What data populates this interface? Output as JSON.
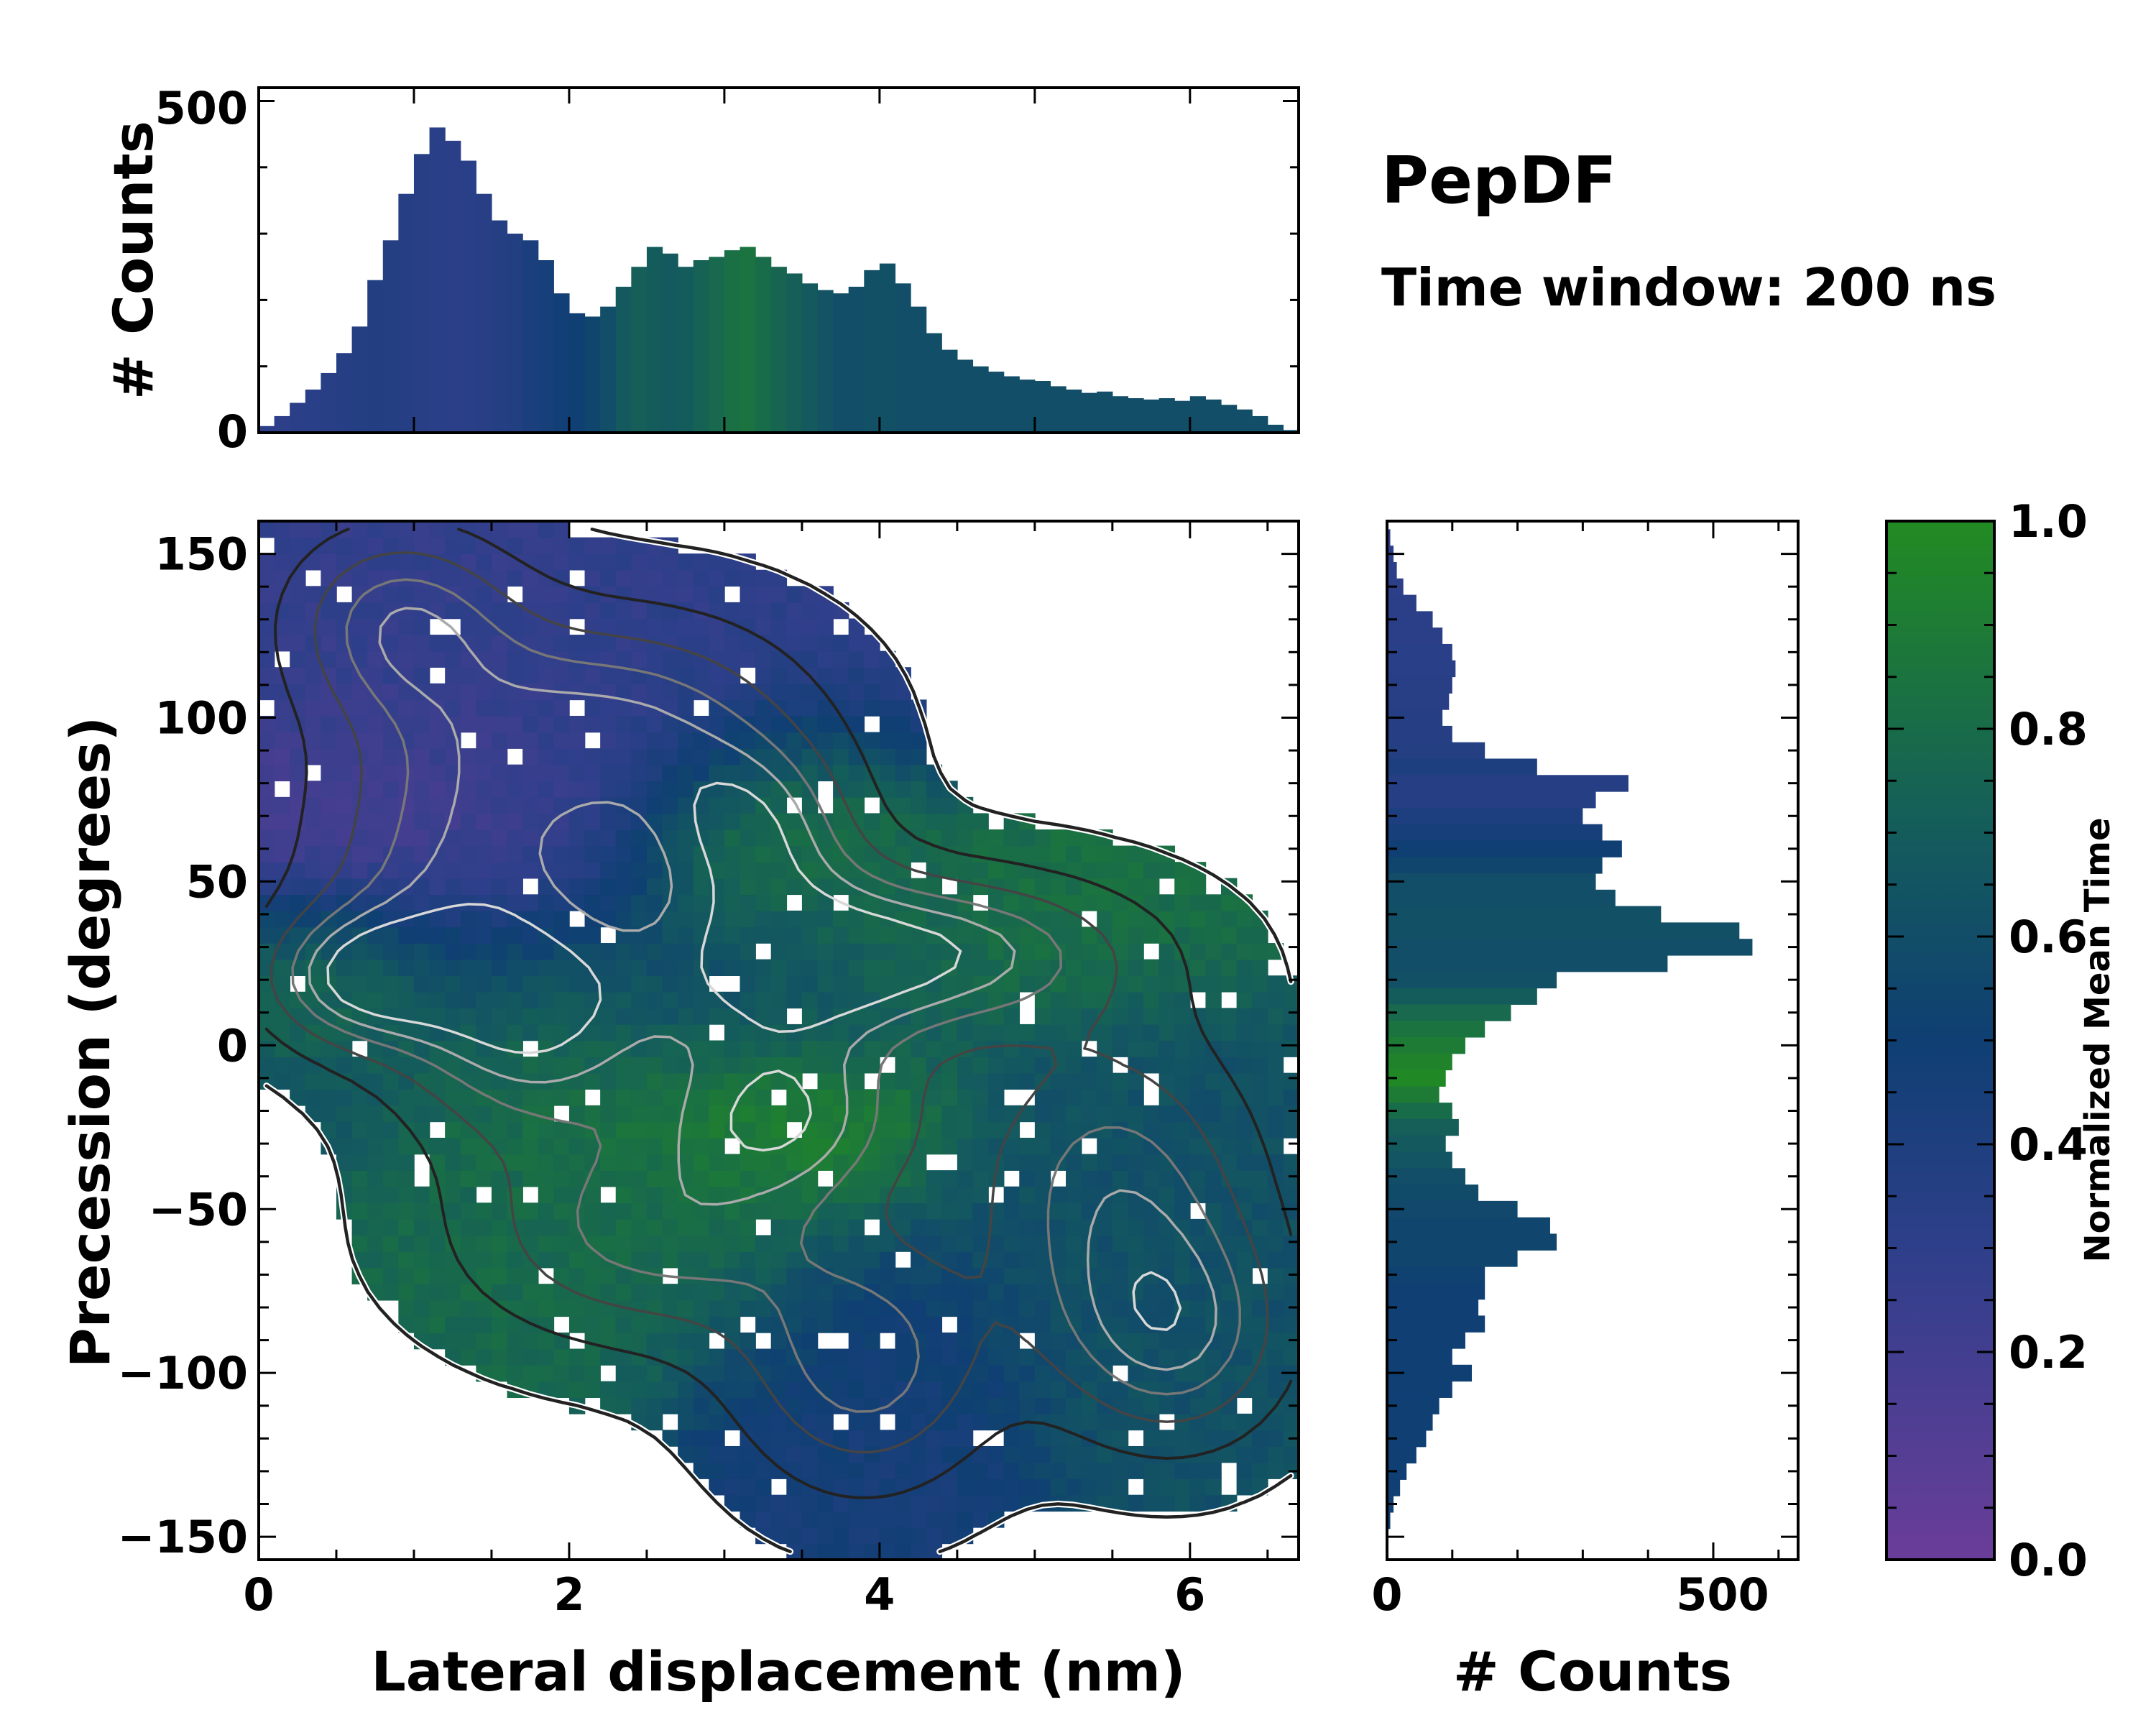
{
  "annotation": {
    "title": "PepDF",
    "subtitle": "Time window: 200 ns"
  },
  "colors": {
    "low": "#6a3d9a",
    "mid_low": "#2e3f8a",
    "mid": "#0f3f73",
    "mid_high": "#145c5c",
    "high": "#228b22",
    "contour_dark": "#222222",
    "contour_light": "#d8d8d8",
    "frame": "#000000"
  },
  "chart_data": [
    {
      "id": "top-histogram",
      "type": "bar",
      "ylabel": "# Counts",
      "xlim": [
        0,
        6.7
      ],
      "ylim": [
        0,
        520
      ],
      "yticks": [
        0,
        500
      ],
      "ytick_labels": [
        "0",
        "500"
      ],
      "bin_centers": [
        0.05,
        0.15,
        0.25,
        0.35,
        0.45,
        0.55,
        0.65,
        0.75,
        0.85,
        0.95,
        1.05,
        1.15,
        1.25,
        1.35,
        1.45,
        1.55,
        1.65,
        1.75,
        1.85,
        1.95,
        2.05,
        2.15,
        2.25,
        2.35,
        2.45,
        2.55,
        2.65,
        2.75,
        2.85,
        2.95,
        3.05,
        3.15,
        3.25,
        3.35,
        3.45,
        3.55,
        3.65,
        3.75,
        3.85,
        3.95,
        4.05,
        4.15,
        4.25,
        4.35,
        4.45,
        4.55,
        4.65,
        4.75,
        4.85,
        4.95,
        5.05,
        5.15,
        5.25,
        5.35,
        5.45,
        5.55,
        5.65,
        5.75,
        5.85,
        5.95,
        6.05,
        6.15,
        6.25,
        6.35,
        6.45,
        6.55,
        6.65
      ],
      "values": [
        10,
        25,
        45,
        65,
        90,
        120,
        160,
        230,
        290,
        360,
        420,
        460,
        440,
        410,
        360,
        320,
        300,
        290,
        260,
        210,
        180,
        175,
        190,
        220,
        250,
        280,
        270,
        250,
        260,
        265,
        275,
        280,
        265,
        250,
        240,
        225,
        215,
        210,
        220,
        245,
        255,
        225,
        190,
        150,
        125,
        110,
        100,
        92,
        85,
        80,
        78,
        70,
        65,
        60,
        62,
        55,
        52,
        50,
        52,
        48,
        55,
        50,
        42,
        35,
        25,
        12,
        4
      ],
      "mean_time": [
        0.3,
        0.3,
        0.32,
        0.33,
        0.34,
        0.35,
        0.36,
        0.37,
        0.36,
        0.35,
        0.34,
        0.33,
        0.32,
        0.33,
        0.34,
        0.36,
        0.38,
        0.42,
        0.45,
        0.48,
        0.5,
        0.55,
        0.6,
        0.68,
        0.72,
        0.7,
        0.68,
        0.7,
        0.74,
        0.78,
        0.82,
        0.85,
        0.8,
        0.76,
        0.72,
        0.68,
        0.64,
        0.6,
        0.6,
        0.62,
        0.62,
        0.6,
        0.6,
        0.6,
        0.6,
        0.6,
        0.6,
        0.6,
        0.6,
        0.6,
        0.6,
        0.6,
        0.6,
        0.6,
        0.6,
        0.6,
        0.6,
        0.6,
        0.6,
        0.6,
        0.6,
        0.6,
        0.6,
        0.6,
        0.6,
        0.6,
        0.6
      ]
    },
    {
      "id": "main-heatmap",
      "type": "heatmap",
      "xlabel": "Lateral displacement (nm)",
      "ylabel": "Precession (degrees)",
      "xlim": [
        0,
        6.7
      ],
      "ylim": [
        -157,
        160
      ],
      "xticks": [
        0,
        2,
        4,
        6
      ],
      "xtick_labels": [
        "0",
        "2",
        "4",
        "6"
      ],
      "yticks": [
        150,
        100,
        50,
        0,
        -50,
        -100,
        -150
      ],
      "ytick_labels": [
        "150",
        "100",
        "50",
        "0",
        "−50",
        "−100",
        "−150"
      ],
      "grid": false,
      "lobes": [
        {
          "cx": 0.9,
          "cy": 130,
          "sx": 0.55,
          "sy": 22,
          "mean_time": 0.28
        },
        {
          "cx": 1.3,
          "cy": 55,
          "sx": 0.75,
          "sy": 35,
          "mean_time": 0.18
        },
        {
          "cx": 0.6,
          "cy": 20,
          "sx": 0.45,
          "sy": 15,
          "mean_time": 0.88
        },
        {
          "cx": 2.4,
          "cy": 100,
          "sx": 0.85,
          "sy": 25,
          "mean_time": 0.3
        },
        {
          "cx": 3.2,
          "cy": 65,
          "sx": 0.5,
          "sy": 20,
          "mean_time": 0.92
        },
        {
          "cx": 3.3,
          "cy": 20,
          "sx": 0.8,
          "sy": 22,
          "mean_time": 0.55
        },
        {
          "cx": 4.5,
          "cy": 30,
          "sx": 0.9,
          "sy": 18,
          "mean_time": 0.85
        },
        {
          "cx": 1.7,
          "cy": 5,
          "sx": 0.6,
          "sy": 25,
          "mean_time": 0.88
        },
        {
          "cx": 3.4,
          "cy": -22,
          "sx": 0.6,
          "sy": 18,
          "mean_time": 0.98
        },
        {
          "cx": 2.5,
          "cy": -58,
          "sx": 0.9,
          "sy": 25,
          "mean_time": 0.78
        },
        {
          "cx": 3.9,
          "cy": -100,
          "sx": 0.6,
          "sy": 28,
          "mean_time": 0.45
        },
        {
          "cx": 5.5,
          "cy": -40,
          "sx": 0.7,
          "sy": 35,
          "mean_time": 0.62
        },
        {
          "cx": 5.9,
          "cy": -90,
          "sx": 0.55,
          "sy": 25,
          "mean_time": 0.62
        }
      ]
    },
    {
      "id": "right-histogram",
      "type": "bar",
      "orientation": "horizontal",
      "xlabel": "# Counts",
      "xlim": [
        0,
        630
      ],
      "ylim": [
        -157,
        160
      ],
      "xticks": [
        0,
        500
      ],
      "xtick_labels": [
        "0",
        "500"
      ],
      "bin_centers": [
        155,
        150,
        145,
        140,
        135,
        130,
        125,
        120,
        115,
        110,
        105,
        100,
        95,
        90,
        85,
        80,
        75,
        70,
        65,
        60,
        55,
        50,
        45,
        40,
        35,
        30,
        25,
        20,
        15,
        10,
        5,
        0,
        -5,
        -10,
        -15,
        -20,
        -25,
        -30,
        -35,
        -40,
        -45,
        -50,
        -55,
        -60,
        -65,
        -70,
        -75,
        -80,
        -85,
        -90,
        -95,
        -100,
        -105,
        -110,
        -115,
        -120,
        -125,
        -130,
        -135,
        -140,
        -145
      ],
      "values": [
        5,
        10,
        15,
        25,
        45,
        70,
        85,
        100,
        105,
        100,
        95,
        85,
        100,
        150,
        230,
        370,
        320,
        300,
        330,
        360,
        330,
        320,
        350,
        420,
        540,
        560,
        430,
        260,
        230,
        190,
        150,
        120,
        100,
        90,
        80,
        100,
        110,
        90,
        100,
        120,
        140,
        200,
        250,
        260,
        200,
        150,
        150,
        140,
        150,
        120,
        100,
        130,
        100,
        80,
        70,
        60,
        45,
        30,
        20,
        10,
        5
      ],
      "mean_time": [
        0.3,
        0.3,
        0.3,
        0.3,
        0.32,
        0.32,
        0.32,
        0.33,
        0.33,
        0.34,
        0.34,
        0.35,
        0.35,
        0.36,
        0.4,
        0.35,
        0.35,
        0.4,
        0.45,
        0.5,
        0.55,
        0.6,
        0.6,
        0.62,
        0.62,
        0.6,
        0.6,
        0.62,
        0.7,
        0.78,
        0.85,
        0.9,
        0.95,
        0.98,
        0.9,
        0.8,
        0.72,
        0.68,
        0.65,
        0.6,
        0.58,
        0.56,
        0.55,
        0.55,
        0.55,
        0.52,
        0.5,
        0.5,
        0.5,
        0.5,
        0.5,
        0.5,
        0.5,
        0.5,
        0.5,
        0.5,
        0.5,
        0.5,
        0.5,
        0.5,
        0.5
      ]
    },
    {
      "id": "colorbar",
      "type": "colorbar",
      "label": "Normalized Mean Time",
      "range": [
        0,
        1
      ],
      "ticks": [
        0.0,
        0.2,
        0.4,
        0.6,
        0.8,
        1.0
      ],
      "tick_labels": [
        "0.0",
        "0.2",
        "0.4",
        "0.6",
        "0.8",
        "1.0"
      ]
    }
  ]
}
